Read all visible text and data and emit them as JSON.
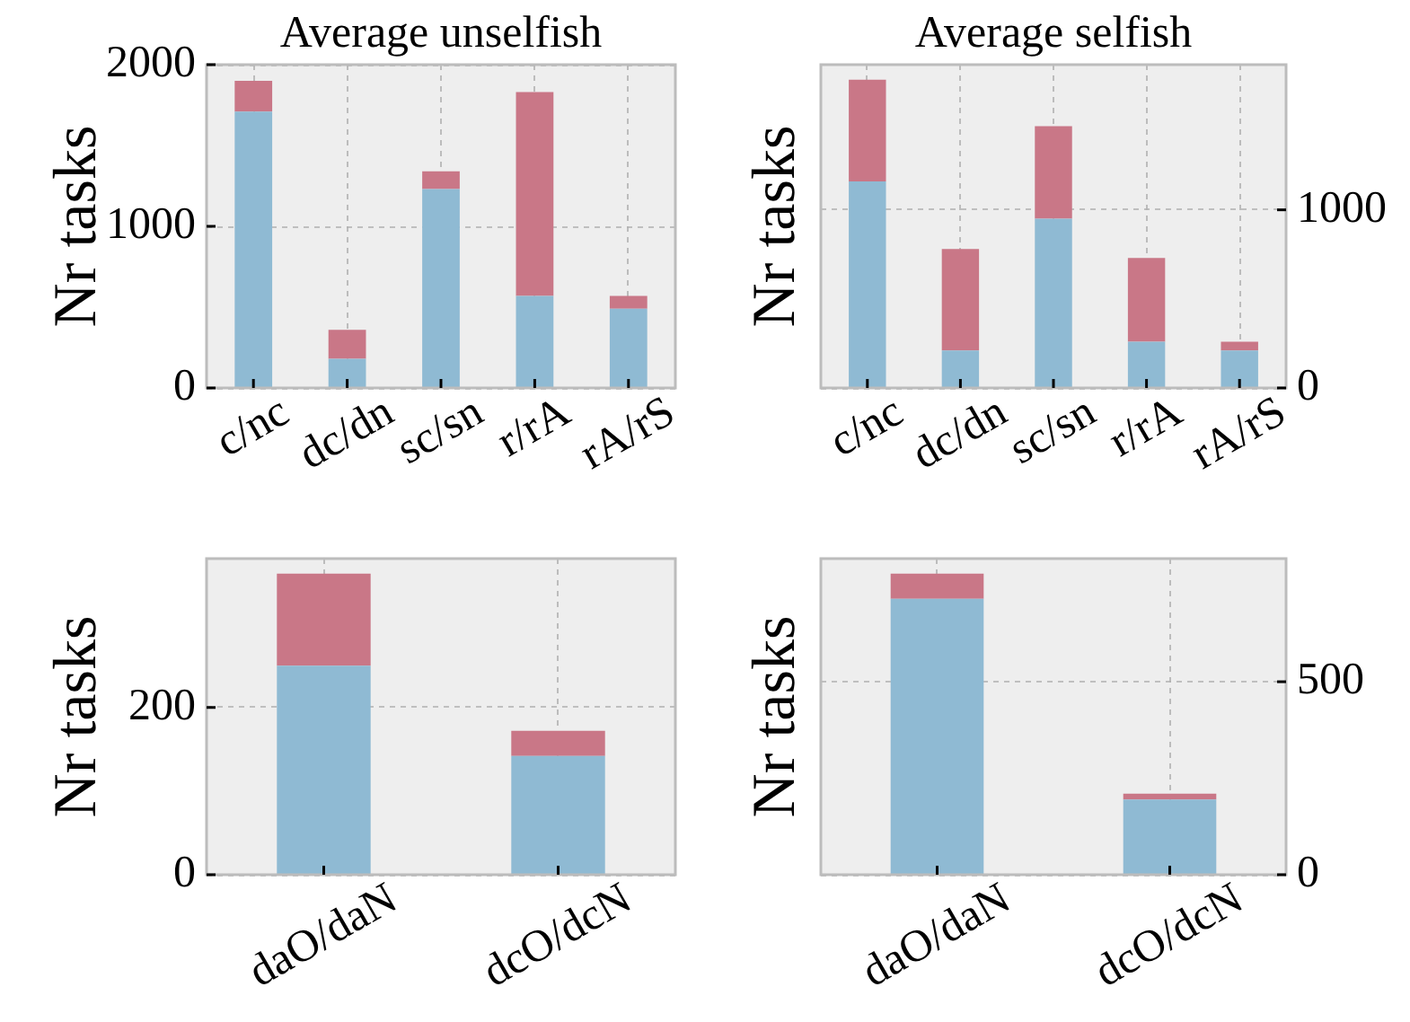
{
  "chart_data": [
    {
      "type": "bar",
      "title": "Average unselfish",
      "ylabel": "Nr tasks",
      "categories": [
        "c/nc",
        "dc/dn",
        "sc/sn",
        "r/rA",
        "rA/rS"
      ],
      "stacked": true,
      "series": [
        {
          "color": "#8fbad3",
          "values": [
            1710,
            180,
            1230,
            570,
            490
          ]
        },
        {
          "color": "#c97787",
          "values": [
            190,
            180,
            110,
            1260,
            80
          ]
        }
      ],
      "ylim": [
        0,
        2000
      ],
      "yticks": [
        0,
        1000,
        2000
      ],
      "grid": true
    },
    {
      "type": "bar",
      "title": "Average selfish",
      "ylabel": "Nr tasks",
      "categories": [
        "c/nc",
        "dc/dn",
        "sc/sn",
        "r/rA",
        "rA/rS"
      ],
      "stacked": true,
      "series": [
        {
          "color": "#8fbad3",
          "axis": "y2",
          "values": [
            1160,
            210,
            950,
            260,
            210
          ]
        },
        {
          "color": "#c97787",
          "axis": "y2",
          "values": [
            570,
            570,
            520,
            470,
            50
          ]
        }
      ],
      "y2lim": [
        0,
        1815
      ],
      "y2ticks": [
        0,
        1000
      ],
      "grid": true
    },
    {
      "type": "bar",
      "ylabel": "Nr tasks",
      "categories": [
        "daO/daN",
        "dcO/dcN"
      ],
      "stacked": true,
      "series": [
        {
          "color": "#8fbad3",
          "values": [
            250,
            142
          ]
        },
        {
          "color": "#c97787",
          "values": [
            110,
            30
          ]
        }
      ],
      "ylim": [
        0,
        378
      ],
      "yticks": [
        0,
        200
      ],
      "grid": true
    },
    {
      "type": "bar",
      "ylabel": "Nr tasks",
      "categories": [
        "daO/daN",
        "dcO/dcN"
      ],
      "stacked": true,
      "series": [
        {
          "color": "#8fbad3",
          "axis": "y2",
          "values": [
            715,
            195
          ]
        },
        {
          "color": "#c97787",
          "axis": "y2",
          "values": [
            65,
            15
          ]
        }
      ],
      "y2lim": [
        0,
        819
      ],
      "y2ticks": [
        0,
        500
      ],
      "grid": true
    }
  ]
}
